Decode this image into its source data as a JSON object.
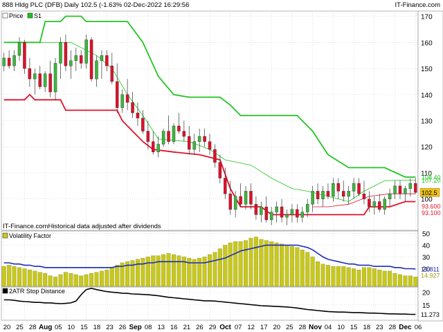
{
  "header": {
    "title": "888 Hldg PLC (DFB) Daily 102.5 (-1.63% 02-Dec-2022 16:29:56",
    "brand": "IT-Finance.com"
  },
  "colors": {
    "up": "#3cb83c",
    "down": "#e0102a",
    "resistance": "#22c422",
    "support": "#e0102a",
    "volatility_bar": "#c8c81e",
    "volatility_line": "#1a2bb5",
    "atr_line": "#000000",
    "price_badge": "#f0c020"
  },
  "chart_data": [
    {
      "type": "candlestick",
      "name": "price-panel",
      "legend": [
        "Price",
        "S1"
      ],
      "note": "IT-Finance.comHistorical data adjusted after dividends",
      "ylim": [
        88,
        172
      ],
      "y_ticks": [
        100,
        110,
        120,
        130,
        140,
        150,
        160,
        170
      ],
      "current_price_label": "102.5",
      "level_labels": [
        "108.40",
        "107.20",
        "93.600",
        "93.100"
      ],
      "x_tick_labels": [
        "20",
        "25",
        "28",
        "Aug",
        "05",
        "10",
        "15",
        "18",
        "23",
        "26",
        "Sep",
        "08",
        "13",
        "16",
        "21",
        "26",
        "29",
        "Oct",
        "07",
        "12",
        "17",
        "20",
        "25",
        "28",
        "Nov",
        "04",
        "10",
        "15",
        "18",
        "23",
        "28",
        "Dec",
        "06"
      ],
      "month_tick_labels": [
        "Aug",
        "Sep",
        "Oct",
        "Nov",
        "Dec"
      ],
      "ohlc": [
        [
          151,
          156,
          149,
          154
        ],
        [
          154,
          157,
          150,
          151
        ],
        [
          151,
          157,
          149,
          155
        ],
        [
          155,
          162,
          153,
          160
        ],
        [
          160,
          161,
          148,
          150
        ],
        [
          150,
          154,
          143,
          146
        ],
        [
          146,
          150,
          140,
          148
        ],
        [
          148,
          151,
          142,
          143
        ],
        [
          143,
          149,
          141,
          148
        ],
        [
          148,
          153,
          139,
          141
        ],
        [
          141,
          154,
          138,
          152
        ],
        [
          152,
          162,
          146,
          160
        ],
        [
          160,
          163,
          149,
          151
        ],
        [
          151,
          157,
          146,
          153
        ],
        [
          153,
          158,
          149,
          155
        ],
        [
          155,
          157,
          150,
          152
        ],
        [
          152,
          163,
          150,
          161
        ],
        [
          161,
          162,
          145,
          146
        ],
        [
          146,
          155,
          143,
          153
        ],
        [
          153,
          157,
          146,
          155
        ],
        [
          155,
          157,
          149,
          151
        ],
        [
          151,
          156,
          144,
          145
        ],
        [
          145,
          152,
          133,
          135
        ],
        [
          135,
          142,
          133,
          140
        ],
        [
          140,
          146,
          134,
          137
        ],
        [
          137,
          141,
          131,
          133
        ],
        [
          133,
          137,
          128,
          131
        ],
        [
          131,
          134,
          125,
          126
        ],
        [
          126,
          130,
          119,
          122
        ],
        [
          122,
          126,
          117,
          118
        ],
        [
          118,
          124,
          116,
          121
        ],
        [
          121,
          127,
          120,
          126
        ],
        [
          126,
          132,
          121,
          122
        ],
        [
          122,
          129,
          121,
          128
        ],
        [
          128,
          133,
          125,
          126
        ],
        [
          126,
          130,
          122,
          124
        ],
        [
          124,
          128,
          117,
          119
        ],
        [
          119,
          125,
          117,
          122
        ],
        [
          122,
          127,
          118,
          124
        ],
        [
          124,
          127,
          120,
          122
        ],
        [
          122,
          125,
          117,
          119
        ],
        [
          119,
          121,
          112,
          114
        ],
        [
          114,
          117,
          106,
          108
        ],
        [
          108,
          112,
          100,
          102
        ],
        [
          102,
          107,
          94,
          96
        ],
        [
          96,
          103,
          93,
          101
        ],
        [
          101,
          106,
          97,
          98
        ],
        [
          98,
          105,
          96,
          103
        ],
        [
          103,
          106,
          96,
          98
        ],
        [
          98,
          101,
          92,
          94
        ],
        [
          94,
          99,
          91,
          97
        ],
        [
          97,
          101,
          91,
          92
        ],
        [
          92,
          97,
          90,
          95
        ],
        [
          95,
          99,
          91,
          97
        ],
        [
          97,
          100,
          91,
          93
        ],
        [
          93,
          96,
          90,
          94
        ],
        [
          94,
          98,
          91,
          96
        ],
        [
          96,
          98,
          91,
          93
        ],
        [
          93,
          97,
          91,
          95
        ],
        [
          95,
          100,
          93,
          98
        ],
        [
          98,
          105,
          95,
          103
        ],
        [
          103,
          106,
          98,
          100
        ],
        [
          100,
          105,
          97,
          103
        ],
        [
          103,
          106,
          100,
          101
        ],
        [
          101,
          108,
          99,
          106
        ],
        [
          106,
          108,
          100,
          103
        ],
        [
          103,
          107,
          99,
          101
        ],
        [
          101,
          105,
          98,
          103
        ],
        [
          103,
          108,
          100,
          106
        ],
        [
          106,
          108,
          101,
          102
        ],
        [
          102,
          107,
          98,
          100
        ],
        [
          100,
          103,
          95,
          97
        ],
        [
          97,
          101,
          94,
          99
        ],
        [
          99,
          102,
          95,
          96
        ],
        [
          96,
          101,
          94,
          100
        ],
        [
          100,
          104,
          97,
          102
        ],
        [
          102,
          107,
          100,
          105
        ],
        [
          105,
          107,
          100,
          102
        ],
        [
          102,
          105,
          99,
          104
        ],
        [
          104,
          108,
          101,
          106
        ],
        [
          106,
          108,
          102,
          102.5
        ]
      ],
      "s1_resistance": [
        [
          0,
          160
        ],
        [
          7,
          160
        ],
        [
          8,
          168
        ],
        [
          11,
          168
        ],
        [
          12,
          170
        ],
        [
          15,
          170
        ],
        [
          16,
          168
        ],
        [
          24,
          168
        ],
        [
          27,
          160
        ],
        [
          30,
          147
        ],
        [
          33,
          140
        ],
        [
          36,
          139
        ],
        [
          42,
          139
        ],
        [
          44,
          136
        ],
        [
          46,
          132
        ],
        [
          48,
          132
        ],
        [
          51,
          132
        ],
        [
          57,
          132
        ],
        [
          60,
          126
        ],
        [
          63,
          117
        ],
        [
          67,
          112
        ],
        [
          70,
          112
        ],
        [
          74,
          112
        ],
        [
          78,
          108.4
        ],
        [
          80,
          108.4
        ]
      ],
      "s2_resistance": [
        [
          0,
          160
        ],
        [
          7,
          160
        ],
        [
          8,
          160
        ],
        [
          13,
          160
        ],
        [
          18,
          155
        ],
        [
          21,
          150
        ],
        [
          24,
          140
        ],
        [
          27,
          132
        ],
        [
          30,
          123
        ],
        [
          36,
          122
        ],
        [
          40,
          119
        ],
        [
          43,
          115
        ],
        [
          48,
          113
        ],
        [
          52,
          108
        ],
        [
          56,
          104
        ],
        [
          59,
          103
        ],
        [
          63,
          101
        ],
        [
          67,
          99
        ],
        [
          70,
          103
        ],
        [
          74,
          107
        ],
        [
          77,
          107.2
        ],
        [
          80,
          107.2
        ]
      ],
      "s1_support": [
        [
          0,
          138
        ],
        [
          4,
          138
        ],
        [
          5,
          140
        ],
        [
          6,
          138
        ],
        [
          11,
          138
        ],
        [
          12,
          134
        ],
        [
          15,
          134
        ],
        [
          18,
          134
        ],
        [
          22,
          134
        ],
        [
          23,
          130
        ],
        [
          25,
          126
        ],
        [
          27,
          122
        ],
        [
          29,
          119
        ],
        [
          33,
          118
        ],
        [
          38,
          117
        ],
        [
          42,
          115
        ],
        [
          44,
          104
        ],
        [
          46,
          97
        ],
        [
          50,
          97
        ],
        [
          52,
          94
        ],
        [
          56,
          94
        ],
        [
          60,
          94
        ],
        [
          66,
          94
        ],
        [
          70,
          94
        ],
        [
          71,
          97
        ],
        [
          75,
          97
        ],
        [
          78,
          99
        ],
        [
          80,
          99
        ]
      ],
      "s2_support": [
        [
          60,
          97
        ],
        [
          63,
          97
        ],
        [
          67,
          98
        ],
        [
          71,
          101
        ],
        [
          75,
          102
        ],
        [
          78,
          102
        ],
        [
          80,
          102
        ]
      ]
    },
    {
      "type": "bar",
      "name": "volatility-panel",
      "legend": [
        "Volatility Factor"
      ],
      "ylim": [
        5,
        52
      ],
      "y_ticks": [
        20,
        30,
        40,
        50
      ],
      "level_labels": [
        "19.811",
        "14.927"
      ],
      "values": [
        22,
        23,
        22,
        21,
        20,
        19,
        18,
        17,
        16,
        14,
        13,
        15,
        17,
        16,
        15,
        14,
        15,
        16,
        17,
        18,
        19,
        21,
        23,
        25,
        26,
        27,
        28,
        29,
        30,
        31,
        31,
        32,
        33,
        32,
        31,
        30,
        29,
        28,
        29,
        30,
        32,
        34,
        37,
        40,
        42,
        43,
        43,
        44,
        46,
        47,
        45,
        44,
        43,
        42,
        41,
        40,
        39,
        38,
        36,
        34,
        30,
        26,
        24,
        23,
        22,
        22,
        22,
        21,
        20,
        19,
        21,
        21,
        20,
        19,
        18,
        18,
        16,
        15,
        14,
        14,
        13
      ],
      "line": [
        25,
        25,
        24,
        24,
        23,
        23,
        22,
        22,
        21,
        21,
        21,
        21,
        21,
        21,
        21,
        21,
        21,
        21,
        21,
        21,
        21,
        21,
        22,
        22,
        23,
        23,
        24,
        24,
        25,
        25,
        26,
        26,
        26,
        26,
        26,
        26,
        25,
        25,
        25,
        25,
        26,
        27,
        28,
        29,
        31,
        33,
        35,
        36,
        37,
        38,
        39,
        40,
        40,
        40,
        40,
        40,
        40,
        40,
        39,
        38,
        36,
        33,
        30,
        28,
        27,
        26,
        25,
        24,
        24,
        23,
        23,
        23,
        22,
        22,
        22,
        22,
        21,
        21,
        20,
        20,
        19.8
      ]
    },
    {
      "type": "line",
      "name": "atr-stop-panel",
      "legend": [
        "2ATR Stop Distance"
      ],
      "ylim": [
        9,
        22
      ],
      "y_ticks": [
        15,
        20
      ],
      "level_labels": [
        "11.273"
      ],
      "values": [
        17,
        17,
        16.8,
        16.5,
        16.3,
        16.2,
        16,
        16,
        15.8,
        15.8,
        15.6,
        15.5,
        15.6,
        15.8,
        16.5,
        19,
        21,
        21.5,
        21,
        20.6,
        20.2,
        20,
        19.8,
        19.6,
        19.5,
        19.3,
        19.2,
        19.1,
        19,
        18.8,
        18.6,
        18.3,
        18,
        17.8,
        17.6,
        17.4,
        17.2,
        17,
        16.8,
        16.6,
        16.6,
        16.5,
        16.3,
        16.1,
        15.9,
        15.7,
        15.5,
        15.3,
        15.1,
        14.9,
        14.7,
        14.6,
        14.5,
        14.4,
        14.3,
        14.2,
        14,
        13.8,
        13.5,
        13.2,
        13,
        12.8,
        12.6,
        12.4,
        12.3,
        12.2,
        12.2,
        12.1,
        12,
        12,
        11.9,
        11.8,
        11.8,
        11.7,
        11.6,
        11.5,
        11.5,
        11.4,
        11.4,
        11.3,
        11.27
      ]
    }
  ]
}
